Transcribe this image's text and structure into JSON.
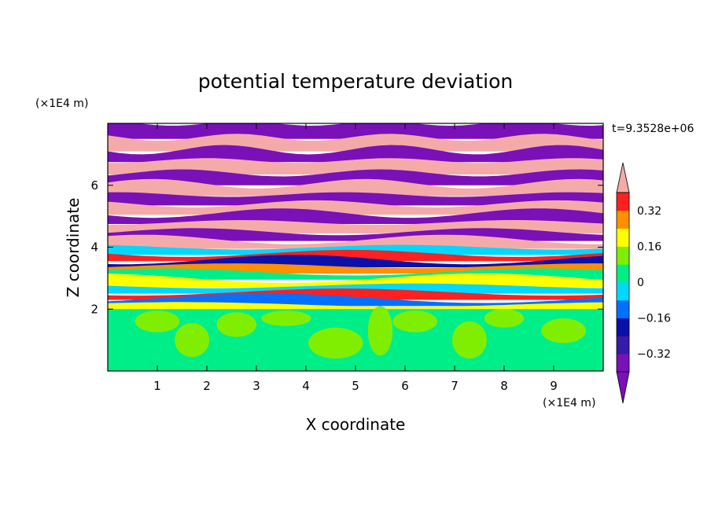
{
  "chart_data": {
    "type": "heatmap",
    "title": "potential temperature deviation",
    "xlabel": "X coordinate",
    "ylabel": "Z coordinate",
    "x_unit": "(×1E4 m)",
    "y_unit": "(×1E4 m)",
    "time_label": "t=9.3528e+06",
    "xlim": [
      0,
      10
    ],
    "ylim": [
      0,
      8
    ],
    "x_ticks": [
      1,
      2,
      3,
      4,
      5,
      6,
      7,
      8,
      9
    ],
    "y_ticks": [
      2,
      4,
      6
    ],
    "colorbar": {
      "levels": [
        -0.4,
        -0.32,
        -0.24,
        -0.16,
        -0.08,
        0,
        0.08,
        0.16,
        0.24,
        0.32,
        0.4
      ],
      "tick_labels": [
        "0.32",
        "0.16",
        "0",
        "−0.16",
        "−0.32"
      ],
      "tick_values": [
        0.32,
        0.16,
        0,
        -0.16,
        -0.32
      ],
      "colors_low_to_high": [
        "#7a10b8",
        "#3a1aa8",
        "#0a10a8",
        "#0070ff",
        "#00d8ff",
        "#00ee88",
        "#80ee00",
        "#ffff00",
        "#ff9000",
        "#ff2020",
        "#f5aaaa"
      ],
      "extend": "both"
    },
    "z_bands": [
      {
        "z0": 7.55,
        "z1": 8.0,
        "value": -0.45
      },
      {
        "z0": 7.15,
        "z1": 7.55,
        "value": 0.45
      },
      {
        "z0": 6.8,
        "z1": 7.15,
        "value": -0.45
      },
      {
        "z0": 6.4,
        "z1": 6.8,
        "value": 0.45
      },
      {
        "z0": 6.05,
        "z1": 6.4,
        "value": -0.45
      },
      {
        "z0": 5.7,
        "z1": 6.05,
        "value": 0.45
      },
      {
        "z0": 5.4,
        "z1": 5.7,
        "value": -0.45
      },
      {
        "z0": 5.1,
        "z1": 5.4,
        "value": 0.45
      },
      {
        "z0": 4.8,
        "z1": 5.1,
        "value": -0.45
      },
      {
        "z0": 4.5,
        "z1": 4.8,
        "value": 0.45
      },
      {
        "z0": 4.25,
        "z1": 4.5,
        "value": -0.45
      },
      {
        "z0": 4.0,
        "z1": 4.25,
        "value": 0.32
      },
      {
        "z0": 3.8,
        "z1": 4.0,
        "value": -0.16
      },
      {
        "z0": 3.6,
        "z1": 3.8,
        "value": 0.24
      },
      {
        "z0": 3.4,
        "z1": 3.6,
        "value": -0.32
      },
      {
        "z0": 3.2,
        "z1": 3.4,
        "value": 0.16
      },
      {
        "z0": 3.0,
        "z1": 3.2,
        "value": -0.08
      },
      {
        "z0": 2.75,
        "z1": 3.0,
        "value": 0.08
      },
      {
        "z0": 2.55,
        "z1": 2.75,
        "value": -0.16
      },
      {
        "z0": 2.35,
        "z1": 2.55,
        "value": 0.24
      },
      {
        "z0": 2.15,
        "z1": 2.35,
        "value": -0.24
      },
      {
        "z0": 2.0,
        "z1": 2.15,
        "value": 0.08
      },
      {
        "z0": 0.0,
        "z1": 2.0,
        "value": -0.02
      }
    ],
    "lower_patches_value": 0.06
  }
}
